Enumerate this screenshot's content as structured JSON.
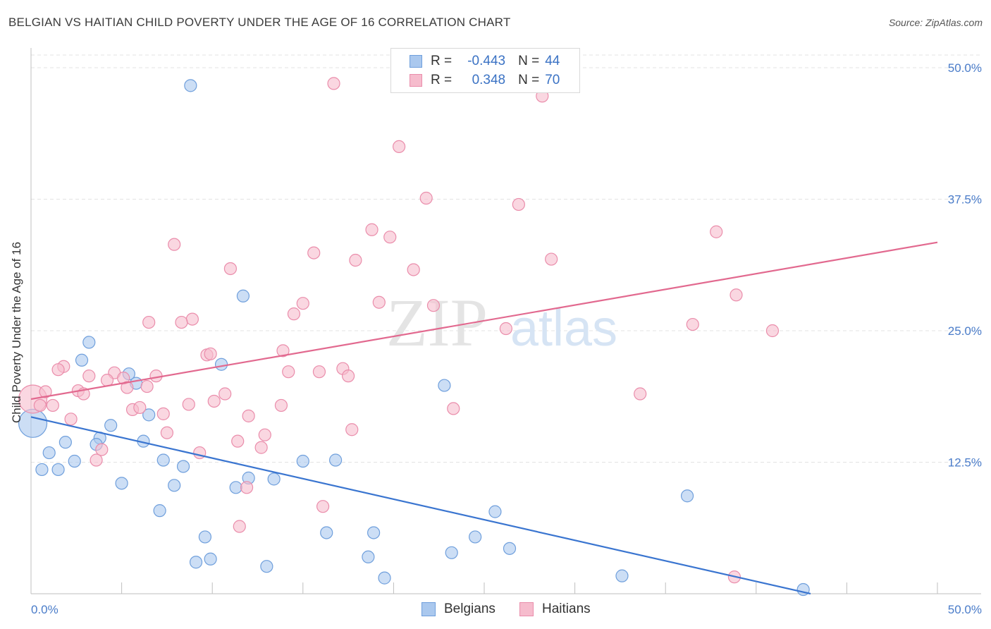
{
  "title": "BELGIAN VS HAITIAN CHILD POVERTY UNDER THE AGE OF 16 CORRELATION CHART",
  "source": "Source: ZipAtlas.com",
  "watermark": {
    "zip": "ZIP",
    "atlas": "atlas"
  },
  "colors": {
    "belgians_fill": "#aac8ee",
    "belgians_stroke": "#6f9fdc",
    "belgians_line": "#3a75d0",
    "haitians_fill": "#f6bccd",
    "haitians_stroke": "#ea8dab",
    "haitians_line": "#e2698f",
    "tick_text": "#4a7cc9",
    "grid": "#e3e3e3"
  },
  "legend": {
    "r_label": "R =",
    "n_label": "N =",
    "belgians": {
      "r": "-0.443",
      "n": "44"
    },
    "haitians": {
      "r": "0.348",
      "n": "70"
    }
  },
  "chart_data": {
    "type": "scatter",
    "title": "BELGIAN VS HAITIAN CHILD POVERTY UNDER THE AGE OF 16 CORRELATION CHART",
    "xlabel": "",
    "ylabel": "Child Poverty Under the Age of 16",
    "xlim": [
      0,
      50
    ],
    "ylim": [
      0,
      50
    ],
    "x_tick_labels": [
      "0.0%",
      "50.0%"
    ],
    "y_ticks": [
      12.5,
      25.0,
      37.5,
      50.0
    ],
    "y_tick_labels": [
      "12.5%",
      "25.0%",
      "37.5%",
      "50.0%"
    ],
    "grid": true,
    "legend_position": "top-center",
    "series": [
      {
        "name": "Belgians",
        "trend": {
          "x": [
            0,
            43
          ],
          "y": [
            16.8,
            0.0
          ]
        },
        "points": [
          {
            "x": 0.1,
            "y": 16.2,
            "big": true
          },
          {
            "x": 8.8,
            "y": 48.3
          },
          {
            "x": 3.2,
            "y": 23.9
          },
          {
            "x": 2.8,
            "y": 22.2
          },
          {
            "x": 11.7,
            "y": 28.3
          },
          {
            "x": 10.5,
            "y": 21.8
          },
          {
            "x": 5.4,
            "y": 20.9
          },
          {
            "x": 5.8,
            "y": 20.0
          },
          {
            "x": 22.8,
            "y": 19.8
          },
          {
            "x": 6.5,
            "y": 17.0
          },
          {
            "x": 4.4,
            "y": 16.0
          },
          {
            "x": 3.8,
            "y": 14.8
          },
          {
            "x": 3.6,
            "y": 14.2
          },
          {
            "x": 1.9,
            "y": 14.4
          },
          {
            "x": 6.2,
            "y": 14.5
          },
          {
            "x": 1.0,
            "y": 13.4
          },
          {
            "x": 2.4,
            "y": 12.6
          },
          {
            "x": 7.3,
            "y": 12.7
          },
          {
            "x": 8.4,
            "y": 12.1
          },
          {
            "x": 0.6,
            "y": 11.8
          },
          {
            "x": 1.5,
            "y": 11.8
          },
          {
            "x": 15.0,
            "y": 12.6
          },
          {
            "x": 16.8,
            "y": 12.7
          },
          {
            "x": 12.0,
            "y": 11.0
          },
          {
            "x": 13.4,
            "y": 10.9
          },
          {
            "x": 5.0,
            "y": 10.5
          },
          {
            "x": 7.9,
            "y": 10.3
          },
          {
            "x": 11.3,
            "y": 10.1
          },
          {
            "x": 7.1,
            "y": 7.9
          },
          {
            "x": 25.6,
            "y": 7.8
          },
          {
            "x": 36.2,
            "y": 9.3
          },
          {
            "x": 9.6,
            "y": 5.4
          },
          {
            "x": 16.3,
            "y": 5.8
          },
          {
            "x": 18.9,
            "y": 5.8
          },
          {
            "x": 24.5,
            "y": 5.4
          },
          {
            "x": 26.4,
            "y": 4.3
          },
          {
            "x": 9.1,
            "y": 3.0
          },
          {
            "x": 9.9,
            "y": 3.3
          },
          {
            "x": 13.0,
            "y": 2.6
          },
          {
            "x": 18.6,
            "y": 3.5
          },
          {
            "x": 23.2,
            "y": 3.9
          },
          {
            "x": 19.5,
            "y": 1.5
          },
          {
            "x": 32.6,
            "y": 1.7
          },
          {
            "x": 42.6,
            "y": 0.4
          }
        ]
      },
      {
        "name": "Haitians",
        "trend": {
          "x": [
            0,
            50
          ],
          "y": [
            18.5,
            33.4
          ]
        },
        "points": [
          {
            "x": 0.1,
            "y": 18.5,
            "big": true
          },
          {
            "x": 16.7,
            "y": 48.5
          },
          {
            "x": 28.2,
            "y": 47.3
          },
          {
            "x": 20.3,
            "y": 42.5
          },
          {
            "x": 21.8,
            "y": 37.6
          },
          {
            "x": 26.9,
            "y": 37.0
          },
          {
            "x": 18.8,
            "y": 34.6
          },
          {
            "x": 19.8,
            "y": 33.9
          },
          {
            "x": 37.8,
            "y": 34.4
          },
          {
            "x": 7.9,
            "y": 33.2
          },
          {
            "x": 15.6,
            "y": 32.4
          },
          {
            "x": 17.9,
            "y": 31.7
          },
          {
            "x": 28.7,
            "y": 31.8
          },
          {
            "x": 21.1,
            "y": 30.8
          },
          {
            "x": 11.0,
            "y": 30.9
          },
          {
            "x": 38.9,
            "y": 28.4
          },
          {
            "x": 15.0,
            "y": 27.6
          },
          {
            "x": 19.2,
            "y": 27.7
          },
          {
            "x": 22.2,
            "y": 27.4
          },
          {
            "x": 14.5,
            "y": 26.6
          },
          {
            "x": 8.9,
            "y": 26.1
          },
          {
            "x": 6.5,
            "y": 25.8
          },
          {
            "x": 8.3,
            "y": 25.8
          },
          {
            "x": 36.5,
            "y": 25.6
          },
          {
            "x": 26.2,
            "y": 25.2
          },
          {
            "x": 40.9,
            "y": 25.0
          },
          {
            "x": 13.9,
            "y": 23.1
          },
          {
            "x": 9.7,
            "y": 22.7
          },
          {
            "x": 9.9,
            "y": 22.8
          },
          {
            "x": 1.8,
            "y": 21.6
          },
          {
            "x": 1.5,
            "y": 21.3
          },
          {
            "x": 14.2,
            "y": 21.1
          },
          {
            "x": 15.9,
            "y": 21.1
          },
          {
            "x": 17.2,
            "y": 21.4
          },
          {
            "x": 17.5,
            "y": 20.7
          },
          {
            "x": 3.2,
            "y": 20.7
          },
          {
            "x": 6.9,
            "y": 20.7
          },
          {
            "x": 4.6,
            "y": 21.0
          },
          {
            "x": 4.2,
            "y": 20.3
          },
          {
            "x": 5.1,
            "y": 20.5
          },
          {
            "x": 6.4,
            "y": 19.7
          },
          {
            "x": 5.3,
            "y": 19.6
          },
          {
            "x": 0.8,
            "y": 19.2
          },
          {
            "x": 2.6,
            "y": 19.3
          },
          {
            "x": 2.9,
            "y": 19.0
          },
          {
            "x": 10.7,
            "y": 19.0
          },
          {
            "x": 33.6,
            "y": 19.0
          },
          {
            "x": 10.1,
            "y": 18.3
          },
          {
            "x": 0.5,
            "y": 17.9
          },
          {
            "x": 1.2,
            "y": 17.9
          },
          {
            "x": 8.7,
            "y": 18.0
          },
          {
            "x": 13.8,
            "y": 17.9
          },
          {
            "x": 5.6,
            "y": 17.5
          },
          {
            "x": 6.0,
            "y": 17.7
          },
          {
            "x": 23.3,
            "y": 17.6
          },
          {
            "x": 7.3,
            "y": 17.1
          },
          {
            "x": 12.0,
            "y": 16.9
          },
          {
            "x": 2.2,
            "y": 16.6
          },
          {
            "x": 17.7,
            "y": 15.6
          },
          {
            "x": 7.5,
            "y": 15.3
          },
          {
            "x": 12.9,
            "y": 15.1
          },
          {
            "x": 11.4,
            "y": 14.5
          },
          {
            "x": 3.9,
            "y": 13.7
          },
          {
            "x": 12.7,
            "y": 13.9
          },
          {
            "x": 9.3,
            "y": 13.4
          },
          {
            "x": 3.6,
            "y": 12.7
          },
          {
            "x": 11.9,
            "y": 10.1
          },
          {
            "x": 16.1,
            "y": 8.3
          },
          {
            "x": 11.5,
            "y": 6.4
          },
          {
            "x": 38.8,
            "y": 1.6
          }
        ]
      }
    ]
  }
}
